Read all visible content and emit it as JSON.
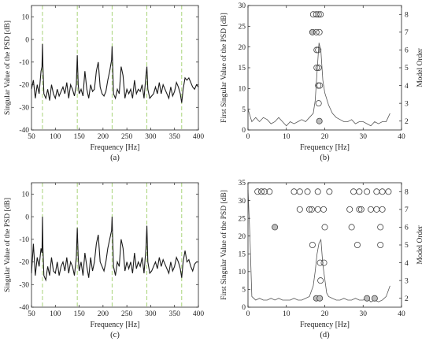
{
  "figure": {
    "panels": [
      {
        "id": "a",
        "caption": "(a)",
        "xlabel": "Frequency [Hz]",
        "ylabel": "Singular Value of the PSD [dB]",
        "xlim": [
          50,
          400
        ],
        "ylim": [
          -40,
          15
        ],
        "xticks": [
          50,
          100,
          150,
          200,
          250,
          300,
          350,
          400
        ],
        "yticks": [
          -40,
          -30,
          -20,
          -10,
          0,
          10
        ],
        "xtick_labels": [
          "50",
          "100",
          "150",
          "200",
          "250",
          "300",
          "350",
          "400"
        ],
        "ytick_labels": [
          "-40",
          "-30",
          "-20",
          "-10",
          "0",
          "10"
        ]
      },
      {
        "id": "b",
        "caption": "(b)",
        "xlabel": "Frequency [Hz]",
        "ylabel": "First Singular Value of the PSD [dB]",
        "y2label": "Model Order",
        "xlim": [
          0,
          40
        ],
        "ylim": [
          0,
          30
        ],
        "y2lim": [
          1.5,
          8.5
        ],
        "xticks": [
          0,
          10,
          20,
          30,
          40
        ],
        "yticks": [
          0,
          5,
          10,
          15,
          20,
          25,
          30
        ],
        "y2ticks": [
          2,
          3,
          4,
          5,
          6,
          7,
          8
        ],
        "xtick_labels": [
          "0",
          "10",
          "20",
          "30",
          "40"
        ],
        "ytick_labels": [
          "0",
          "5",
          "10",
          "15",
          "20",
          "25",
          "30"
        ],
        "y2tick_labels": [
          "2",
          "3",
          "4",
          "5",
          "6",
          "7",
          "8"
        ]
      },
      {
        "id": "c",
        "caption": "(c)",
        "xlabel": "Frequency [Hz]",
        "ylabel": "Singular Value of the PSD [dB]",
        "xlim": [
          50,
          400
        ],
        "ylim": [
          -40,
          15
        ],
        "xticks": [
          50,
          100,
          150,
          200,
          250,
          300,
          350,
          400
        ],
        "yticks": [
          -40,
          -30,
          -20,
          -10,
          0,
          10
        ],
        "xtick_labels": [
          "50",
          "100",
          "150",
          "200",
          "250",
          "300",
          "350",
          "400"
        ],
        "ytick_labels": [
          "-40",
          "-30",
          "-20",
          "-10",
          "0",
          "10"
        ]
      },
      {
        "id": "d",
        "caption": "(d)",
        "xlabel": "Frequency [Hz]",
        "ylabel": "First Singular Value of the PSD [dB]",
        "y2label": "Model Order",
        "xlim": [
          0,
          40
        ],
        "ylim": [
          0,
          35
        ],
        "y2lim": [
          1.5,
          8.5
        ],
        "xticks": [
          0,
          10,
          20,
          30,
          40
        ],
        "yticks": [
          0,
          5,
          10,
          15,
          20,
          25,
          30,
          35
        ],
        "y2ticks": [
          2,
          3,
          4,
          5,
          6,
          7,
          8
        ],
        "xtick_labels": [
          "0",
          "10",
          "20",
          "30",
          "40"
        ],
        "ytick_labels": [
          "0",
          "5",
          "10",
          "15",
          "20",
          "25",
          "30",
          "35"
        ],
        "y2tick_labels": [
          "2",
          "3",
          "4",
          "5",
          "6",
          "7",
          "8"
        ]
      }
    ]
  },
  "colors": {
    "line": "#1a1a1a",
    "line_light": "#555555",
    "harmonic_dash": "#9fcf6a",
    "marker_stroke": "#444444",
    "marker_fill_stable": "#bdbdbd",
    "axis": "#222222"
  },
  "chart_data": [
    {
      "panel": "a",
      "type": "line",
      "harmonic_lines_x": [
        73,
        146,
        219,
        292,
        365
      ],
      "series": [
        {
          "x": [
            50,
            54,
            58,
            62,
            66,
            70,
            72,
            73,
            74,
            76,
            80,
            84,
            88,
            92,
            96,
            100,
            104,
            108,
            112,
            116,
            120,
            124,
            128,
            132,
            136,
            140,
            144,
            146,
            148,
            150,
            154,
            158,
            162,
            166,
            170,
            174,
            178,
            182,
            186,
            190,
            194,
            198,
            202,
            206,
            210,
            214,
            218,
            219,
            220,
            222,
            226,
            230,
            234,
            238,
            242,
            246,
            250,
            254,
            258,
            262,
            266,
            270,
            274,
            278,
            282,
            286,
            290,
            292,
            294,
            298,
            302,
            306,
            310,
            314,
            318,
            322,
            326,
            330,
            334,
            338,
            342,
            346,
            350,
            354,
            358,
            362,
            365,
            368,
            372,
            376,
            380,
            384,
            388,
            392,
            396,
            400
          ],
          "y": [
            -22,
            -18,
            -26,
            -20,
            -24,
            -14,
            -12,
            -2,
            -12,
            -24,
            -26,
            -22,
            -27,
            -20,
            -24,
            -26,
            -22,
            -25,
            -23,
            -21,
            -24,
            -19,
            -26,
            -20,
            -22,
            -25,
            -20,
            -7,
            -20,
            -24,
            -22,
            -25,
            -14,
            -22,
            -26,
            -20,
            -23,
            -22,
            -14,
            -10,
            -21,
            -24,
            -25,
            -23,
            -18,
            -14,
            -9,
            -3,
            -10,
            -24,
            -26,
            -22,
            -24,
            -12,
            -16,
            -26,
            -22,
            -24,
            -22,
            -26,
            -18,
            -24,
            -22,
            -23,
            -20,
            -26,
            -16,
            -12,
            -22,
            -26,
            -25,
            -24,
            -21,
            -24,
            -19,
            -24,
            -20,
            -22,
            -24,
            -26,
            -21,
            -25,
            -23,
            -19,
            -21,
            -24,
            -28,
            -22,
            -17,
            -18,
            -17,
            -19,
            -21,
            -22,
            -20,
            -21
          ]
        }
      ]
    },
    {
      "panel": "b",
      "type": "line",
      "series": [
        {
          "x": [
            0,
            1,
            2,
            3,
            4,
            5,
            6,
            7,
            8,
            9,
            10,
            11,
            12,
            13,
            14,
            15,
            16,
            17,
            17.5,
            18,
            18.5,
            19,
            19.5,
            20,
            21,
            22,
            23,
            24,
            25,
            26,
            27,
            28,
            29,
            30,
            31,
            32,
            33,
            34,
            35,
            36,
            37
          ],
          "y": [
            5,
            2,
            3,
            2,
            3,
            2.5,
            1.5,
            2,
            3,
            2,
            1,
            2,
            1.5,
            2,
            2.5,
            2,
            3,
            4,
            7,
            14,
            21,
            19,
            12,
            9,
            6,
            4,
            3,
            2.5,
            2,
            2,
            2.5,
            1.5,
            2,
            2,
            1.5,
            1,
            2,
            1.5,
            2,
            2,
            4
          ]
        }
      ],
      "stabilization_points": [
        {
          "x": 17.0,
          "order": 8,
          "stable": false
        },
        {
          "x": 17.8,
          "order": 8,
          "stable": false
        },
        {
          "x": 18.4,
          "order": 8,
          "stable": false
        },
        {
          "x": 18.9,
          "order": 8,
          "stable": false
        },
        {
          "x": 16.8,
          "order": 7,
          "stable": true
        },
        {
          "x": 17.8,
          "order": 7,
          "stable": false
        },
        {
          "x": 18.6,
          "order": 7,
          "stable": false
        },
        {
          "x": 17.9,
          "order": 6,
          "stable": false
        },
        {
          "x": 18.3,
          "order": 6,
          "stable": false
        },
        {
          "x": 17.9,
          "order": 5,
          "stable": false
        },
        {
          "x": 18.4,
          "order": 5,
          "stable": false
        },
        {
          "x": 18.3,
          "order": 4,
          "stable": false
        },
        {
          "x": 18.7,
          "order": 4,
          "stable": false
        },
        {
          "x": 18.4,
          "order": 3,
          "stable": false
        },
        {
          "x": 18.6,
          "order": 2,
          "stable": true
        }
      ]
    },
    {
      "panel": "c",
      "type": "line",
      "harmonic_lines_x": [
        73,
        146,
        219,
        292,
        365
      ],
      "series": [
        {
          "x": [
            50,
            54,
            58,
            62,
            66,
            70,
            72,
            73,
            74,
            76,
            80,
            84,
            88,
            92,
            96,
            100,
            104,
            108,
            112,
            116,
            120,
            124,
            128,
            132,
            136,
            140,
            144,
            146,
            148,
            150,
            154,
            158,
            162,
            166,
            170,
            174,
            178,
            182,
            186,
            190,
            194,
            198,
            202,
            206,
            210,
            214,
            218,
            219,
            220,
            222,
            226,
            230,
            234,
            238,
            242,
            246,
            250,
            254,
            258,
            262,
            266,
            270,
            274,
            278,
            282,
            286,
            290,
            292,
            294,
            298,
            302,
            306,
            310,
            314,
            318,
            322,
            326,
            330,
            334,
            338,
            342,
            346,
            350,
            354,
            358,
            362,
            365,
            368,
            372,
            376,
            380,
            384,
            388,
            392,
            396,
            400
          ],
          "y": [
            -25,
            -12,
            -26,
            -18,
            -22,
            -14,
            -16,
            0,
            -14,
            -26,
            -28,
            -22,
            -26,
            -18,
            -24,
            -25,
            -20,
            -26,
            -22,
            -20,
            -24,
            -18,
            -25,
            -20,
            -22,
            -26,
            -18,
            -5,
            -18,
            -24,
            -20,
            -26,
            -16,
            -22,
            -27,
            -18,
            -24,
            -20,
            -12,
            -8,
            -20,
            -22,
            -24,
            -20,
            -14,
            -10,
            -6,
            0,
            -8,
            -22,
            -26,
            -20,
            -22,
            -10,
            -14,
            -24,
            -20,
            -23,
            -20,
            -25,
            -16,
            -23,
            -20,
            -22,
            -18,
            -25,
            -14,
            -4,
            -20,
            -25,
            -24,
            -22,
            -20,
            -23,
            -18,
            -22,
            -19,
            -21,
            -23,
            -25,
            -20,
            -24,
            -22,
            -18,
            -20,
            -23,
            -27,
            -20,
            -15,
            -20,
            -19,
            -22,
            -24,
            -21,
            -20,
            -20
          ]
        }
      ]
    },
    {
      "panel": "d",
      "type": "line",
      "series": [
        {
          "x": [
            0,
            0.5,
            1,
            2,
            3,
            4,
            5,
            6,
            7,
            8,
            9,
            10,
            11,
            12,
            13,
            14,
            15,
            16,
            17,
            17.5,
            18,
            18.5,
            19,
            19.5,
            20,
            20.5,
            21,
            22,
            23,
            24,
            25,
            26,
            27,
            28,
            29,
            30,
            31,
            32,
            33,
            34,
            35,
            36,
            37
          ],
          "y": [
            33,
            20,
            3,
            2,
            2.5,
            2,
            2,
            2.5,
            2,
            2.5,
            2,
            2,
            2,
            2.5,
            2,
            2,
            2.5,
            3,
            6,
            10,
            15,
            18,
            19,
            12,
            8,
            4,
            3,
            2.5,
            2,
            2,
            2.5,
            2,
            2,
            2.5,
            2,
            2,
            2.5,
            1.5,
            2,
            1.5,
            2,
            3,
            6
          ]
        }
      ],
      "stabilization_points": [
        {
          "x": 2.5,
          "order": 8,
          "stable": false
        },
        {
          "x": 3.5,
          "order": 8,
          "stable": false
        },
        {
          "x": 4.3,
          "order": 8,
          "stable": false
        },
        {
          "x": 5.6,
          "order": 8,
          "stable": false
        },
        {
          "x": 12.0,
          "order": 8,
          "stable": false
        },
        {
          "x": 13.5,
          "order": 8,
          "stable": false
        },
        {
          "x": 15.5,
          "order": 8,
          "stable": false
        },
        {
          "x": 18.2,
          "order": 8,
          "stable": false
        },
        {
          "x": 21.2,
          "order": 8,
          "stable": false
        },
        {
          "x": 27.5,
          "order": 8,
          "stable": false
        },
        {
          "x": 29.0,
          "order": 8,
          "stable": false
        },
        {
          "x": 31.0,
          "order": 8,
          "stable": false
        },
        {
          "x": 33.5,
          "order": 8,
          "stable": false
        },
        {
          "x": 35.0,
          "order": 8,
          "stable": false
        },
        {
          "x": 36.6,
          "order": 8,
          "stable": false
        },
        {
          "x": 13.5,
          "order": 7,
          "stable": false
        },
        {
          "x": 16.0,
          "order": 7,
          "stable": false
        },
        {
          "x": 16.6,
          "order": 7,
          "stable": false
        },
        {
          "x": 18.2,
          "order": 7,
          "stable": false
        },
        {
          "x": 19.7,
          "order": 7,
          "stable": false
        },
        {
          "x": 26.5,
          "order": 7,
          "stable": false
        },
        {
          "x": 29.0,
          "order": 7,
          "stable": false
        },
        {
          "x": 29.5,
          "order": 7,
          "stable": false
        },
        {
          "x": 32.0,
          "order": 7,
          "stable": false
        },
        {
          "x": 33.5,
          "order": 7,
          "stable": false
        },
        {
          "x": 35.0,
          "order": 7,
          "stable": false
        },
        {
          "x": 7.0,
          "order": 6,
          "stable": true
        },
        {
          "x": 20.0,
          "order": 6,
          "stable": false
        },
        {
          "x": 27.0,
          "order": 6,
          "stable": false
        },
        {
          "x": 34.5,
          "order": 6,
          "stable": false
        },
        {
          "x": 16.8,
          "order": 5,
          "stable": false
        },
        {
          "x": 28.5,
          "order": 5,
          "stable": false
        },
        {
          "x": 34.5,
          "order": 5,
          "stable": false
        },
        {
          "x": 18.8,
          "order": 4,
          "stable": false
        },
        {
          "x": 19.8,
          "order": 4,
          "stable": false
        },
        {
          "x": 18.9,
          "order": 3,
          "stable": false
        },
        {
          "x": 17.8,
          "order": 2,
          "stable": true
        },
        {
          "x": 18.7,
          "order": 2,
          "stable": true
        },
        {
          "x": 31.0,
          "order": 2,
          "stable": true
        },
        {
          "x": 33.0,
          "order": 2,
          "stable": true
        }
      ]
    }
  ]
}
